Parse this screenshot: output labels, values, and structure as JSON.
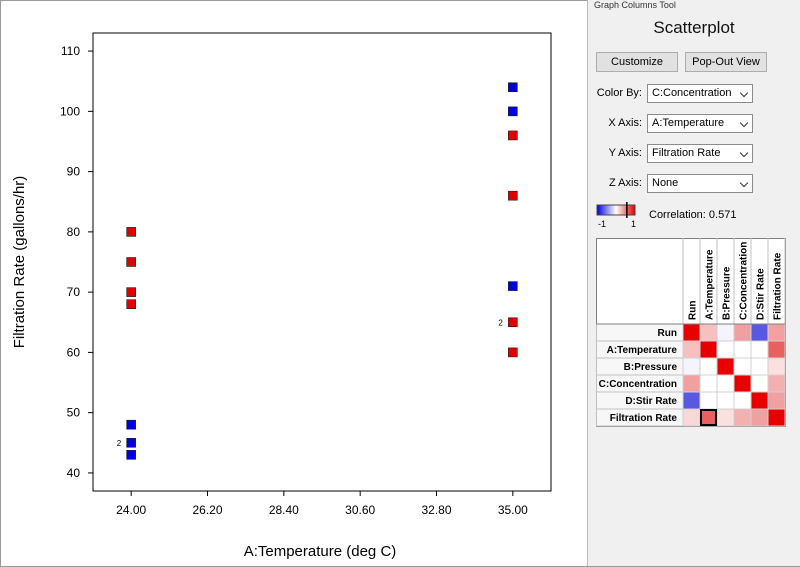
{
  "chart_data": {
    "type": "scatter",
    "xlabel": "A:Temperature (deg C)",
    "ylabel": "Filtration Rate (gallons/hr)",
    "xlim": [
      22.9,
      36.1
    ],
    "ylim": [
      37,
      113
    ],
    "x_ticks": [
      "24.00",
      "26.20",
      "28.40",
      "30.60",
      "32.80",
      "35.00"
    ],
    "x_tick_values": [
      24.0,
      26.2,
      28.4,
      30.6,
      32.8,
      35.0
    ],
    "y_ticks": [
      "40",
      "50",
      "60",
      "70",
      "80",
      "90",
      "100",
      "110"
    ],
    "y_tick_values": [
      40,
      50,
      60,
      70,
      80,
      90,
      100,
      110
    ],
    "color_by": "C:Concentration",
    "points": [
      {
        "x": 24,
        "y": 80,
        "color": "#e00000"
      },
      {
        "x": 24,
        "y": 75,
        "color": "#e00000"
      },
      {
        "x": 24,
        "y": 70,
        "color": "#e00000"
      },
      {
        "x": 24,
        "y": 68,
        "color": "#e00000"
      },
      {
        "x": 24,
        "y": 48,
        "color": "#0000e0"
      },
      {
        "x": 24,
        "y": 45,
        "color": "#0000e0",
        "label": "2"
      },
      {
        "x": 24,
        "y": 43,
        "color": "#0000e0"
      },
      {
        "x": 35,
        "y": 104,
        "color": "#0000e0"
      },
      {
        "x": 35,
        "y": 100,
        "color": "#0000e0"
      },
      {
        "x": 35,
        "y": 96,
        "color": "#e00000"
      },
      {
        "x": 35,
        "y": 86,
        "color": "#e00000"
      },
      {
        "x": 35,
        "y": 71,
        "color": "#0000e0"
      },
      {
        "x": 35,
        "y": 65,
        "color": "#e00000",
        "label": "2"
      },
      {
        "x": 35,
        "y": 60,
        "color": "#e00000"
      }
    ]
  },
  "panel": {
    "header": "Graph Columns Tool",
    "title": "Scatterplot",
    "customize_label": "Customize",
    "popout_label": "Pop-Out View",
    "color_by_label": "Color By:",
    "color_by_value": "C:Concentration",
    "x_axis_label": "X Axis:",
    "x_axis_value": "A:Temperature",
    "y_axis_label": "Y Axis:",
    "y_axis_value": "Filtration Rate",
    "z_axis_label": "Z Axis:",
    "z_axis_value": "None",
    "scale_min": "-1",
    "scale_max": "1",
    "correlation_text": "Correlation: 0.571",
    "correlation_value": 0.571
  },
  "matrix": {
    "labels": [
      "Run",
      "A:Temperature",
      "B:Pressure",
      "C:Concentration",
      "D:Stir Rate",
      "Filtration Rate"
    ],
    "cells": [
      [
        "#e80000",
        "#f6c0c0",
        "#f4f4fb",
        "#f0a0a0",
        "#5858e0",
        "#f3a0a0"
      ],
      [
        "#f6c0c0",
        "#e80000",
        "#ffffff",
        "#ffffff",
        "#ffffff",
        "#e86060"
      ],
      [
        "#f4f4fb",
        "#ffffff",
        "#e80000",
        "#ffffff",
        "#ffffff",
        "#fbe0e0"
      ],
      [
        "#f0a0a0",
        "#ffffff",
        "#ffffff",
        "#e80000",
        "#ffffff",
        "#f3b0b0"
      ],
      [
        "#5858e0",
        "#ffffff",
        "#ffffff",
        "#ffffff",
        "#e80000",
        "#f0a0a0"
      ],
      [
        "#f8d8d8",
        "#e86060",
        "#fbe0e0",
        "#f3b0b0",
        "#f0a0a0",
        "#e80000"
      ]
    ],
    "selected": [
      5,
      1
    ]
  }
}
